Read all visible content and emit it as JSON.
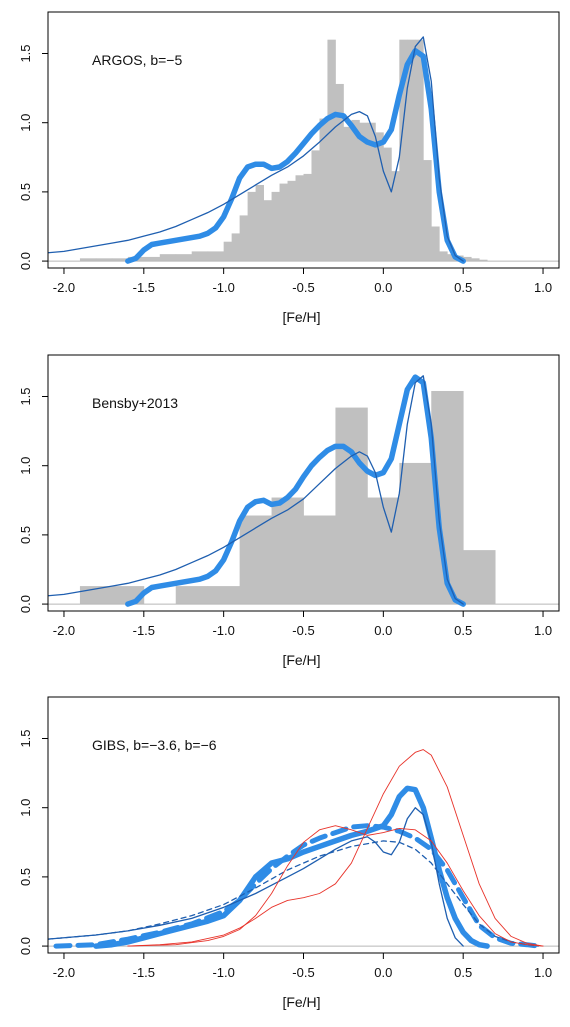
{
  "chart_data": [
    {
      "type": "histogram-density",
      "annotation": "ARGOS, b=−5",
      "xlabel": "[Fe/H]",
      "ylabel": "",
      "xlim": [
        -2.1,
        1.1
      ],
      "ylim": [
        -0.05,
        1.8
      ],
      "x_ticks": [
        -2.0,
        -1.5,
        -1.0,
        -0.5,
        0.0,
        0.5,
        1.0
      ],
      "x_tick_labels": [
        "-2.0",
        "-1.5",
        "-1.0",
        "-0.5",
        "0.0",
        "0.5",
        "1.0"
      ],
      "y_ticks": [
        0.0,
        0.5,
        1.0,
        1.5
      ],
      "y_tick_labels": [
        "0.0",
        "0.5",
        "1.0",
        "1.5"
      ],
      "colors": {
        "histogram": "#c0c0c0",
        "thick_curve": "#2f8ce6",
        "thin_curve": "#1f5fb0",
        "zero_line": "#b8b8b8"
      },
      "histogram": {
        "bin_edges": [
          -1.9,
          -1.8,
          -1.7,
          -1.6,
          -1.5,
          -1.4,
          -1.3,
          -1.2,
          -1.1,
          -1.0,
          -0.95,
          -0.9,
          -0.85,
          -0.8,
          -0.75,
          -0.7,
          -0.65,
          -0.6,
          -0.55,
          -0.5,
          -0.45,
          -0.4,
          -0.35,
          -0.3,
          -0.25,
          -0.2,
          -0.15,
          -0.1,
          -0.05,
          0.0,
          0.05,
          0.1,
          0.15,
          0.2,
          0.25,
          0.3,
          0.35,
          0.4,
          0.45,
          0.5,
          0.55,
          0.6,
          0.65
        ],
        "values": [
          0.02,
          0.02,
          0.02,
          0.03,
          0.03,
          0.05,
          0.05,
          0.07,
          0.07,
          0.14,
          0.2,
          0.33,
          0.5,
          0.55,
          0.44,
          0.5,
          0.56,
          0.58,
          0.62,
          0.63,
          0.8,
          1.03,
          1.6,
          1.28,
          0.97,
          1.02,
          1.0,
          1.0,
          0.93,
          0.82,
          0.65,
          1.6,
          1.6,
          1.6,
          0.73,
          0.25,
          0.07,
          0.05,
          0.04,
          0.03,
          0.02,
          0.01
        ]
      },
      "series": [
        {
          "style": "thick",
          "x": [
            -1.6,
            -1.55,
            -1.5,
            -1.45,
            -1.4,
            -1.35,
            -1.3,
            -1.25,
            -1.2,
            -1.15,
            -1.1,
            -1.05,
            -1.0,
            -0.95,
            -0.9,
            -0.85,
            -0.8,
            -0.75,
            -0.7,
            -0.65,
            -0.6,
            -0.55,
            -0.5,
            -0.45,
            -0.4,
            -0.35,
            -0.3,
            -0.25,
            -0.2,
            -0.15,
            -0.1,
            -0.05,
            0.0,
            0.05,
            0.1,
            0.15,
            0.2,
            0.25,
            0.3,
            0.35,
            0.4,
            0.45,
            0.5
          ],
          "y": [
            0.0,
            0.02,
            0.08,
            0.12,
            0.13,
            0.14,
            0.15,
            0.16,
            0.17,
            0.18,
            0.2,
            0.24,
            0.32,
            0.45,
            0.6,
            0.68,
            0.7,
            0.7,
            0.67,
            0.68,
            0.72,
            0.78,
            0.85,
            0.92,
            0.98,
            1.03,
            1.06,
            1.05,
            0.98,
            0.9,
            0.86,
            0.84,
            0.86,
            0.95,
            1.2,
            1.42,
            1.52,
            1.48,
            1.1,
            0.5,
            0.15,
            0.03,
            0.0
          ]
        },
        {
          "style": "thin",
          "x": [
            -2.1,
            -2.0,
            -1.9,
            -1.8,
            -1.7,
            -1.6,
            -1.5,
            -1.4,
            -1.3,
            -1.2,
            -1.1,
            -1.0,
            -0.9,
            -0.8,
            -0.7,
            -0.6,
            -0.5,
            -0.4,
            -0.3,
            -0.2,
            -0.15,
            -0.1,
            -0.05,
            0.0,
            0.05,
            0.1,
            0.15,
            0.2,
            0.25,
            0.3,
            0.35,
            0.4,
            0.45,
            0.5
          ],
          "y": [
            0.06,
            0.07,
            0.09,
            0.11,
            0.13,
            0.15,
            0.18,
            0.21,
            0.25,
            0.3,
            0.35,
            0.41,
            0.48,
            0.55,
            0.62,
            0.68,
            0.76,
            0.86,
            0.97,
            1.06,
            1.08,
            1.05,
            0.9,
            0.65,
            0.5,
            0.75,
            1.25,
            1.55,
            1.62,
            1.3,
            0.6,
            0.18,
            0.04,
            0.0
          ]
        }
      ]
    },
    {
      "type": "histogram-density",
      "annotation": "Bensby+2013",
      "xlabel": "[Fe/H]",
      "ylabel": "",
      "xlim": [
        -2.1,
        1.1
      ],
      "ylim": [
        -0.05,
        1.8
      ],
      "x_ticks": [
        -2.0,
        -1.5,
        -1.0,
        -0.5,
        0.0,
        0.5,
        1.0
      ],
      "x_tick_labels": [
        "-2.0",
        "-1.5",
        "-1.0",
        "-0.5",
        "0.0",
        "0.5",
        "1.0"
      ],
      "y_ticks": [
        0.0,
        0.5,
        1.0,
        1.5
      ],
      "y_tick_labels": [
        "0.0",
        "0.5",
        "1.0",
        "1.5"
      ],
      "colors": {
        "histogram": "#c0c0c0",
        "thick_curve": "#2f8ce6",
        "thin_curve": "#1f5fb0",
        "zero_line": "#b8b8b8"
      },
      "histogram": {
        "bin_edges": [
          -1.9,
          -1.7,
          -1.5,
          -1.3,
          -1.1,
          -0.9,
          -0.7,
          -0.5,
          -0.3,
          -0.1,
          0.1,
          0.3,
          0.5,
          0.7
        ],
        "values": [
          0.13,
          0.13,
          0.0,
          0.13,
          0.13,
          0.64,
          0.77,
          0.64,
          1.42,
          0.77,
          1.02,
          1.54,
          0.39
        ]
      },
      "series": [
        {
          "style": "thick",
          "x": [
            -1.6,
            -1.55,
            -1.5,
            -1.45,
            -1.4,
            -1.35,
            -1.3,
            -1.25,
            -1.2,
            -1.15,
            -1.1,
            -1.05,
            -1.0,
            -0.95,
            -0.9,
            -0.85,
            -0.8,
            -0.75,
            -0.7,
            -0.65,
            -0.6,
            -0.55,
            -0.5,
            -0.45,
            -0.4,
            -0.35,
            -0.3,
            -0.25,
            -0.2,
            -0.15,
            -0.1,
            -0.05,
            0.0,
            0.05,
            0.1,
            0.15,
            0.2,
            0.25,
            0.3,
            0.35,
            0.4,
            0.45,
            0.5
          ],
          "y": [
            0.0,
            0.02,
            0.08,
            0.12,
            0.13,
            0.14,
            0.15,
            0.16,
            0.17,
            0.18,
            0.2,
            0.24,
            0.32,
            0.45,
            0.6,
            0.7,
            0.74,
            0.75,
            0.72,
            0.73,
            0.77,
            0.83,
            0.92,
            1.0,
            1.06,
            1.11,
            1.14,
            1.14,
            1.1,
            1.02,
            0.96,
            0.93,
            0.95,
            1.05,
            1.3,
            1.55,
            1.64,
            1.6,
            1.2,
            0.55,
            0.15,
            0.03,
            0.0
          ]
        },
        {
          "style": "thin",
          "x": [
            -2.1,
            -2.0,
            -1.9,
            -1.8,
            -1.7,
            -1.6,
            -1.5,
            -1.4,
            -1.3,
            -1.2,
            -1.1,
            -1.0,
            -0.9,
            -0.8,
            -0.7,
            -0.6,
            -0.5,
            -0.4,
            -0.3,
            -0.2,
            -0.15,
            -0.1,
            -0.05,
            0.0,
            0.05,
            0.1,
            0.15,
            0.2,
            0.25,
            0.3,
            0.35,
            0.4,
            0.45,
            0.5
          ],
          "y": [
            0.06,
            0.07,
            0.09,
            0.11,
            0.13,
            0.15,
            0.18,
            0.21,
            0.25,
            0.3,
            0.35,
            0.41,
            0.48,
            0.55,
            0.62,
            0.68,
            0.76,
            0.87,
            0.98,
            1.07,
            1.1,
            1.07,
            0.95,
            0.7,
            0.52,
            0.8,
            1.3,
            1.6,
            1.65,
            1.3,
            0.6,
            0.18,
            0.04,
            0.0
          ]
        }
      ]
    },
    {
      "type": "density",
      "annotation": "GIBS, b=−3.6, b=−6",
      "xlabel": "[Fe/H]",
      "ylabel": "",
      "xlim": [
        -2.1,
        1.1
      ],
      "ylim": [
        -0.05,
        1.8
      ],
      "x_ticks": [
        -2.0,
        -1.5,
        -1.0,
        -0.5,
        0.0,
        0.5,
        1.0
      ],
      "x_tick_labels": [
        "-2.0",
        "-1.5",
        "-1.0",
        "-0.5",
        "0.0",
        "0.5",
        "1.0"
      ],
      "y_ticks": [
        0.0,
        0.5,
        1.0,
        1.5
      ],
      "y_tick_labels": [
        "0.0",
        "0.5",
        "1.0",
        "1.5"
      ],
      "colors": {
        "thick_curve": "#2f8ce6",
        "thin_curve": "#1f5fb0",
        "red_curve": "#e8332a",
        "zero_line": "#b8b8b8"
      },
      "series": [
        {
          "style": "thick",
          "color": "#2f8ce6",
          "x": [
            -1.8,
            -1.7,
            -1.6,
            -1.5,
            -1.4,
            -1.3,
            -1.2,
            -1.1,
            -1.0,
            -0.9,
            -0.8,
            -0.7,
            -0.6,
            -0.5,
            -0.4,
            -0.3,
            -0.2,
            -0.1,
            0.0,
            0.05,
            0.1,
            0.15,
            0.2,
            0.25,
            0.3,
            0.35,
            0.4,
            0.45,
            0.5,
            0.55,
            0.6,
            0.65
          ],
          "y": [
            0.0,
            0.01,
            0.03,
            0.06,
            0.09,
            0.12,
            0.15,
            0.18,
            0.22,
            0.33,
            0.5,
            0.6,
            0.63,
            0.68,
            0.72,
            0.76,
            0.8,
            0.83,
            0.87,
            0.95,
            1.08,
            1.14,
            1.13,
            1.0,
            0.78,
            0.55,
            0.35,
            0.2,
            0.1,
            0.04,
            0.01,
            0.0
          ]
        },
        {
          "style": "thick-dashed",
          "color": "#2f8ce6",
          "x": [
            -2.05,
            -1.8,
            -1.6,
            -1.4,
            -1.2,
            -1.0,
            -0.9,
            -0.8,
            -0.7,
            -0.6,
            -0.5,
            -0.4,
            -0.3,
            -0.2,
            -0.1,
            0.0,
            0.1,
            0.2,
            0.3,
            0.4,
            0.5,
            0.6,
            0.7,
            0.8,
            0.9,
            0.97
          ],
          "y": [
            0.0,
            0.01,
            0.05,
            0.1,
            0.16,
            0.25,
            0.33,
            0.45,
            0.56,
            0.65,
            0.73,
            0.78,
            0.82,
            0.86,
            0.87,
            0.86,
            0.83,
            0.78,
            0.7,
            0.55,
            0.35,
            0.15,
            0.06,
            0.02,
            0.01,
            0.0
          ]
        },
        {
          "style": "thin",
          "color": "#1f5fb0",
          "x": [
            -2.1,
            -2.0,
            -1.8,
            -1.6,
            -1.4,
            -1.2,
            -1.0,
            -0.8,
            -0.6,
            -0.5,
            -0.4,
            -0.3,
            -0.2,
            -0.1,
            -0.05,
            0.0,
            0.05,
            0.1,
            0.15,
            0.2,
            0.25,
            0.3,
            0.35,
            0.4,
            0.45,
            0.5
          ],
          "y": [
            0.05,
            0.06,
            0.08,
            0.11,
            0.15,
            0.2,
            0.28,
            0.38,
            0.5,
            0.56,
            0.63,
            0.7,
            0.76,
            0.79,
            0.75,
            0.68,
            0.66,
            0.75,
            0.92,
            1.0,
            0.95,
            0.75,
            0.45,
            0.2,
            0.06,
            0.0
          ]
        },
        {
          "style": "thin-dashed",
          "color": "#1f5fb0",
          "x": [
            -2.1,
            -1.8,
            -1.6,
            -1.4,
            -1.2,
            -1.0,
            -0.8,
            -0.6,
            -0.4,
            -0.2,
            0.0,
            0.1,
            0.2,
            0.3,
            0.4,
            0.5,
            0.6,
            0.7,
            0.8,
            0.9,
            0.97
          ],
          "y": [
            0.05,
            0.08,
            0.11,
            0.16,
            0.22,
            0.3,
            0.42,
            0.55,
            0.65,
            0.72,
            0.76,
            0.75,
            0.7,
            0.6,
            0.45,
            0.3,
            0.16,
            0.07,
            0.03,
            0.01,
            0.0
          ]
        },
        {
          "style": "red-single-peak",
          "color": "#e8332a",
          "x": [
            -1.6,
            -1.4,
            -1.2,
            -1.0,
            -0.9,
            -0.8,
            -0.7,
            -0.6,
            -0.5,
            -0.4,
            -0.3,
            -0.2,
            -0.1,
            0.0,
            0.1,
            0.2,
            0.25,
            0.3,
            0.4,
            0.5,
            0.6,
            0.7,
            0.8,
            0.9,
            1.0
          ],
          "y": [
            0.0,
            0.01,
            0.03,
            0.08,
            0.13,
            0.2,
            0.28,
            0.33,
            0.35,
            0.38,
            0.45,
            0.6,
            0.85,
            1.1,
            1.3,
            1.4,
            1.42,
            1.38,
            1.15,
            0.8,
            0.45,
            0.2,
            0.07,
            0.02,
            0.0
          ]
        },
        {
          "style": "red-broad",
          "color": "#e8332a",
          "x": [
            -1.6,
            -1.3,
            -1.1,
            -1.0,
            -0.9,
            -0.8,
            -0.7,
            -0.6,
            -0.5,
            -0.4,
            -0.3,
            -0.2,
            -0.1,
            0.0,
            0.1,
            0.2,
            0.3,
            0.4,
            0.5,
            0.6,
            0.7,
            0.8,
            0.9,
            1.0
          ],
          "y": [
            0.0,
            0.01,
            0.04,
            0.07,
            0.12,
            0.22,
            0.38,
            0.58,
            0.75,
            0.84,
            0.87,
            0.84,
            0.8,
            0.82,
            0.85,
            0.84,
            0.76,
            0.6,
            0.4,
            0.22,
            0.09,
            0.03,
            0.01,
            0.0
          ]
        }
      ]
    }
  ]
}
